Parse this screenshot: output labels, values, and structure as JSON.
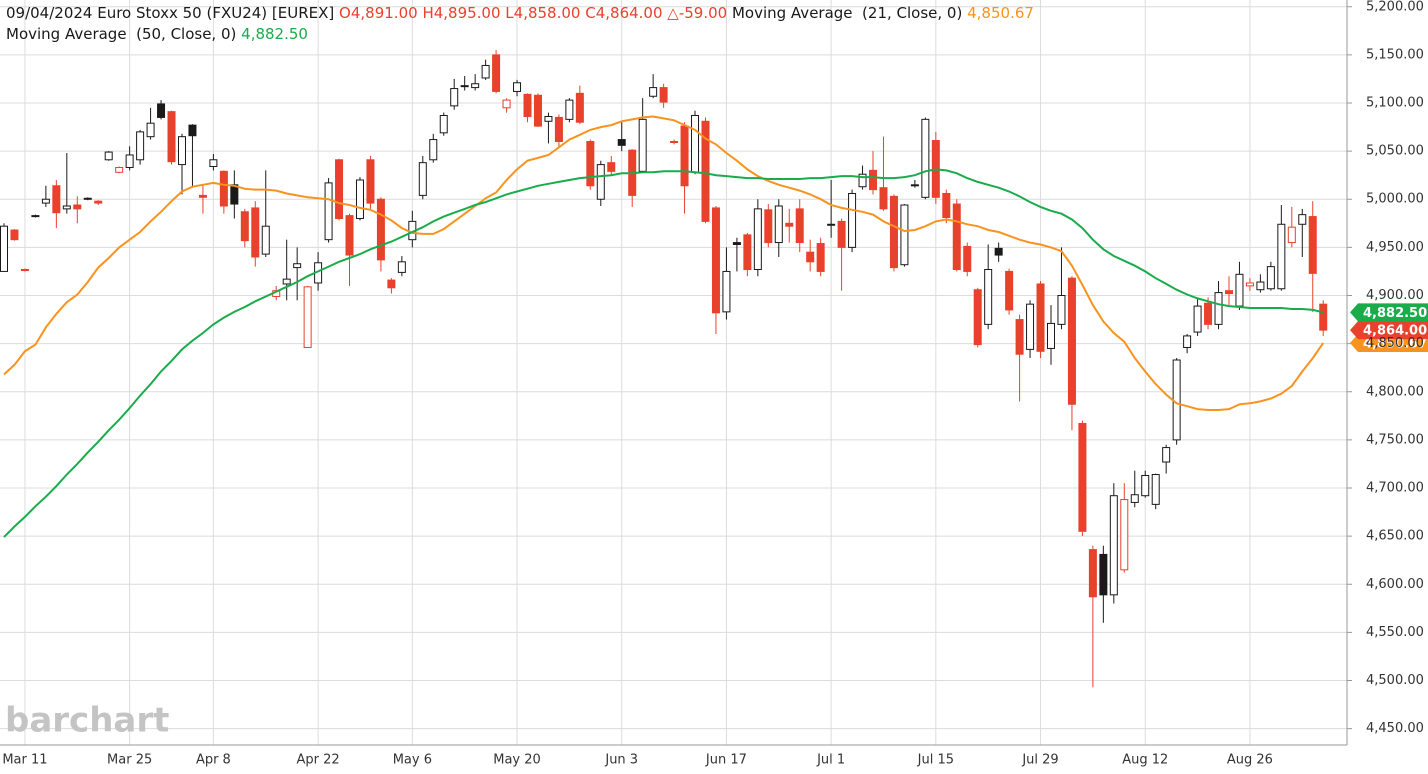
{
  "chart_data": {
    "type": "candlestick",
    "title": "09/04/2024 Euro Stoxx 50 (FXU24) [EUREX]",
    "ohlc_labels": [
      "O4,891.00",
      "H4,895.00",
      "L4,858.00",
      "C4,864.00",
      "△-59.00"
    ],
    "last_price_label": "4,864.00",
    "watermark": "barchart",
    "colors": {
      "up": "#1a1a1a",
      "down": "#e8412c",
      "header_change": "#e8412c"
    },
    "grid": true,
    "ylim": [
      4433,
      5207
    ],
    "yticks": [
      {
        "value": 4450,
        "label": "4,450.00"
      },
      {
        "value": 4500,
        "label": "4,500.00"
      },
      {
        "value": 4550,
        "label": "4,550.00"
      },
      {
        "value": 4600,
        "label": "4,600.00"
      },
      {
        "value": 4650,
        "label": "4,650.00"
      },
      {
        "value": 4700,
        "label": "4,700.00"
      },
      {
        "value": 4750,
        "label": "4,750.00"
      },
      {
        "value": 4800,
        "label": "4,800.00"
      },
      {
        "value": 4850,
        "label": "4,850.00"
      },
      {
        "value": 4900,
        "label": "4,900.00"
      },
      {
        "value": 4950,
        "label": "4,950.00"
      },
      {
        "value": 5000,
        "label": "5,000.00"
      },
      {
        "value": 5050,
        "label": "5,050.00"
      },
      {
        "value": 5100,
        "label": "5,100.00"
      },
      {
        "value": 5150,
        "label": "5,150.00"
      },
      {
        "value": 5200,
        "label": "5,200.00"
      }
    ],
    "categories": [
      null,
      null,
      "Mar 11",
      null,
      null,
      null,
      null,
      null,
      null,
      null,
      null,
      null,
      "Mar 25",
      null,
      null,
      null,
      null,
      null,
      null,
      null,
      "Apr 8",
      null,
      null,
      null,
      null,
      null,
      null,
      null,
      null,
      null,
      "Apr 22",
      null,
      null,
      null,
      null,
      null,
      null,
      null,
      null,
      "May 6",
      null,
      null,
      null,
      null,
      null,
      null,
      null,
      null,
      null,
      "May 20",
      null,
      null,
      null,
      null,
      null,
      null,
      null,
      null,
      null,
      "Jun 3",
      null,
      null,
      null,
      null,
      null,
      null,
      null,
      null,
      null,
      "Jun 17",
      null,
      null,
      null,
      null,
      null,
      null,
      null,
      null,
      null,
      "Jul 1",
      null,
      null,
      null,
      null,
      null,
      null,
      null,
      null,
      null,
      "Jul 15",
      null,
      null,
      null,
      null,
      null,
      null,
      null,
      null,
      null,
      "Jul 29",
      null,
      null,
      null,
      null,
      null,
      null,
      null,
      null,
      null,
      "Aug 12",
      null,
      null,
      null,
      null,
      null,
      null,
      null,
      null,
      null,
      "Aug 26",
      null,
      null,
      null,
      null,
      null,
      null,
      null
    ],
    "open": [
      4925,
      4968,
      4927,
      4982,
      4996,
      5014,
      4990,
      4994,
      5000,
      4998,
      5041,
      5028,
      5033,
      5041,
      5065,
      5099,
      5091,
      5036,
      5077,
      5004,
      5034,
      5029,
      5015,
      4987,
      4991,
      4943,
      4899,
      4912,
      4929,
      4846,
      4913,
      4958,
      5041,
      4983,
      4980,
      5041,
      5000,
      4916,
      4924,
      4958,
      5004,
      5041,
      5069,
      5097,
      5118,
      5116,
      5126,
      5150,
      5095,
      5112,
      5109,
      5108,
      5081,
      5085,
      5083,
      5110,
      5060,
      5000,
      5038,
      5062,
      5051,
      5029,
      5107,
      5116,
      5060,
      5076,
      5028,
      5081,
      4991,
      4883,
      4955,
      4963,
      4927,
      4989,
      4955,
      4975,
      4990,
      4945,
      4954,
      4974,
      4977,
      4950,
      5013,
      5030,
      5012,
      5003,
      4932,
      5015,
      5002,
      5061,
      5006,
      4995,
      4951,
      4906,
      4870,
      4949,
      4925,
      4875,
      4844,
      4912,
      4845,
      4870,
      4918,
      4767,
      4636,
      4631,
      4589,
      4615,
      4685,
      4692,
      4683,
      4727,
      4750,
      4846,
      4862,
      4892,
      4870,
      4905,
      4889,
      4910,
      4906,
      4907,
      4907,
      4955,
      4974,
      4982,
      4891
    ],
    "high": [
      4975,
      4969,
      4928,
      4984,
      5014,
      5020,
      5048,
      5003,
      5002,
      4999,
      5050,
      5034,
      5055,
      5072,
      5095,
      5103,
      5092,
      5068,
      5078,
      5015,
      5047,
      5030,
      5030,
      4990,
      4998,
      5030,
      4910,
      4958,
      4950,
      4910,
      4945,
      5022,
      5042,
      4985,
      5023,
      5045,
      5002,
      4918,
      4941,
      4988,
      5045,
      5068,
      5090,
      5125,
      5128,
      5130,
      5145,
      5155,
      5105,
      5124,
      5110,
      5110,
      5090,
      5088,
      5105,
      5118,
      5062,
      5040,
      5045,
      5080,
      5052,
      5105,
      5130,
      5120,
      5062,
      5080,
      5092,
      5085,
      4993,
      4950,
      4960,
      4965,
      5000,
      4995,
      5000,
      4990,
      5000,
      4958,
      4960,
      5020,
      4980,
      5010,
      5035,
      5050,
      5065,
      5005,
      4995,
      5020,
      5085,
      5070,
      5010,
      5000,
      4955,
      4908,
      4953,
      4955,
      4928,
      4880,
      4895,
      4915,
      4890,
      4950,
      4920,
      4770,
      4640,
      4640,
      4705,
      4705,
      4718,
      4718,
      4715,
      4745,
      4835,
      4860,
      4897,
      4898,
      4915,
      4920,
      4935,
      4918,
      4922,
      4935,
      4994,
      4992,
      4990,
      4998,
      4895
    ],
    "low": [
      4925,
      4957,
      4925,
      4981,
      4992,
      4970,
      4985,
      4975,
      4999,
      4994,
      5040,
      5027,
      5030,
      5036,
      5062,
      5083,
      5036,
      5005,
      5012,
      4985,
      5030,
      4985,
      4980,
      4950,
      4930,
      4940,
      4895,
      4895,
      4895,
      4846,
      4905,
      4955,
      4978,
      4910,
      4978,
      4990,
      4925,
      4902,
      4920,
      4950,
      5000,
      5038,
      5066,
      5093,
      5113,
      5113,
      5124,
      5110,
      5090,
      5107,
      5080,
      5075,
      5058,
      5055,
      5080,
      5078,
      5010,
      4993,
      5025,
      5050,
      4992,
      5028,
      5105,
      5095,
      5057,
      4985,
      5026,
      4975,
      4860,
      4875,
      4925,
      4920,
      4920,
      4950,
      4940,
      4955,
      4945,
      4925,
      4920,
      4960,
      4905,
      4945,
      5010,
      5005,
      4988,
      4925,
      4930,
      5012,
      5000,
      4995,
      4975,
      4925,
      4920,
      4846,
      4865,
      4935,
      4880,
      4790,
      4835,
      4835,
      4828,
      4865,
      4760,
      4650,
      4493,
      4560,
      4580,
      4612,
      4680,
      4690,
      4678,
      4715,
      4745,
      4840,
      4858,
      4865,
      4865,
      4890,
      4885,
      4905,
      4903,
      4905,
      4905,
      4950,
      4940,
      4883,
      4858
    ],
    "close": [
      4972,
      4958,
      4926,
      4983,
      5000,
      4986,
      4993,
      4990,
      5001,
      4996,
      5049,
      5033,
      5046,
      5070,
      5079,
      5085,
      5039,
      5065,
      5066,
      5002,
      5041,
      4993,
      4995,
      4957,
      4940,
      4972,
      4905,
      4917,
      4933,
      4909,
      4934,
      5017,
      4980,
      4942,
      5020,
      4996,
      4937,
      4908,
      4935,
      4977,
      5038,
      5062,
      5087,
      5115,
      5117,
      5120,
      5139,
      5112,
      5103,
      5121,
      5086,
      5076,
      5086,
      5060,
      5103,
      5080,
      5014,
      5036,
      5029,
      5056,
      5004,
      5083,
      5116,
      5101,
      5059,
      5014,
      5087,
      4977,
      4882,
      4925,
      4953,
      4927,
      4990,
      4955,
      4993,
      4972,
      4955,
      4935,
      4925,
      4973,
      4950,
      5006,
      5026,
      5010,
      4990,
      4929,
      4994,
      5014,
      5083,
      5002,
      4981,
      4927,
      4925,
      4849,
      4927,
      4942,
      4885,
      4839,
      4891,
      4842,
      4871,
      4900,
      4787,
      4655,
      4587,
      4589,
      4692,
      4688,
      4693,
      4713,
      4714,
      4742,
      4833,
      4858,
      4889,
      4870,
      4903,
      4902,
      4922,
      4913,
      4914,
      4930,
      4974,
      4971,
      4984,
      4923,
      4864
    ],
    "overlays": [
      {
        "name": "Moving Average  (21, Close, 0)",
        "color": "#f7931e",
        "value_label": "4,850.67",
        "values": [
          4818,
          4828,
          4842,
          4849,
          4867,
          4881,
          4893,
          4901,
          4914,
          4929,
          4939,
          4950,
          4958,
          4966,
          4977,
          4987,
          4998,
          5008,
          5013,
          5015,
          5017,
          5015,
          5014,
          5011,
          5010,
          5010,
          5009,
          5006,
          5004,
          5002,
          5001,
          5000,
          4996,
          4994,
          4991,
          4989,
          4984,
          4978,
          4970,
          4965,
          4964,
          4964,
          4969,
          4977,
          4985,
          4993,
          5001,
          5007,
          5020,
          5031,
          5040,
          5043,
          5046,
          5054,
          5062,
          5067,
          5072,
          5075,
          5077,
          5081,
          5083,
          5085,
          5086,
          5084,
          5082,
          5077,
          5072,
          5063,
          5057,
          5048,
          5040,
          5031,
          5024,
          5019,
          5015,
          5012,
          5009,
          5005,
          5000,
          4994,
          4991,
          4989,
          4987,
          4984,
          4977,
          4972,
          4967,
          4968,
          4972,
          4977,
          4979,
          4977,
          4974,
          4972,
          4968,
          4966,
          4962,
          4958,
          4955,
          4953,
          4950,
          4946,
          4931,
          4911,
          4890,
          4873,
          4861,
          4852,
          4835,
          4821,
          4808,
          4797,
          4788,
          4785,
          4782,
          4781,
          4781,
          4782,
          4787,
          4788,
          4790,
          4793,
          4798,
          4806,
          4821,
          4835,
          4850.67
        ]
      },
      {
        "name": "Moving Average  (50, Close, 0)",
        "color": "#1aab4b",
        "value_label": "4,882.50",
        "values": [
          4649,
          4660,
          4670,
          4681,
          4691,
          4702,
          4714,
          4725,
          4737,
          4748,
          4760,
          4771,
          4783,
          4796,
          4808,
          4821,
          4832,
          4844,
          4853,
          4861,
          4870,
          4877,
          4883,
          4888,
          4894,
          4899,
          4904,
          4909,
          4914,
          4920,
          4925,
          4930,
          4935,
          4939,
          4943,
          4948,
          4952,
          4956,
          4961,
          4966,
          4971,
          4977,
          4982,
          4986,
          4990,
          4994,
          4997,
          5001,
          5005,
          5008,
          5011,
          5014,
          5016,
          5018,
          5020,
          5022,
          5023,
          5024,
          5025,
          5027,
          5027,
          5028,
          5028,
          5029,
          5029,
          5029,
          5028,
          5027,
          5025,
          5024,
          5023,
          5022,
          5022,
          5021,
          5021,
          5021,
          5021,
          5022,
          5022,
          5023,
          5024,
          5024,
          5023,
          5023,
          5022,
          5022,
          5023,
          5025,
          5029,
          5031,
          5030,
          5027,
          5022,
          5018,
          5015,
          5012,
          5008,
          5003,
          4997,
          4992,
          4988,
          4985,
          4979,
          4970,
          4958,
          4948,
          4941,
          4936,
          4931,
          4925,
          4918,
          4912,
          4906,
          4901,
          4897,
          4894,
          4891,
          4889,
          4888,
          4887,
          4887,
          4887,
          4887,
          4886,
          4886,
          4885,
          4882.5
        ]
      }
    ]
  }
}
